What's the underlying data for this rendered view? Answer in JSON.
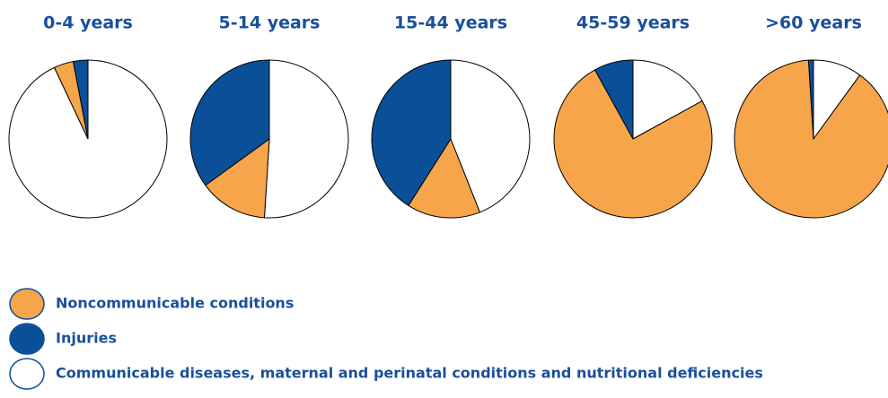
{
  "chart_data": {
    "type": "pie",
    "categories": [
      "0-4 years",
      "5-14 years",
      "15-44 years",
      "45-59 years",
      ">60 years"
    ],
    "series": [
      {
        "name": "Communicable diseases, maternal and perinatal conditions and nutritional deficiencies",
        "color": "#ffffff",
        "values": [
          93,
          51,
          44,
          17,
          10
        ]
      },
      {
        "name": "Noncommunicable conditions",
        "color": "#f7a54a",
        "values": [
          4,
          14,
          15,
          75,
          89
        ]
      },
      {
        "name": "Injuries",
        "color": "#0a5099",
        "values": [
          3,
          35,
          41,
          8,
          1
        ]
      }
    ],
    "legend_order": [
      1,
      2,
      0
    ]
  }
}
